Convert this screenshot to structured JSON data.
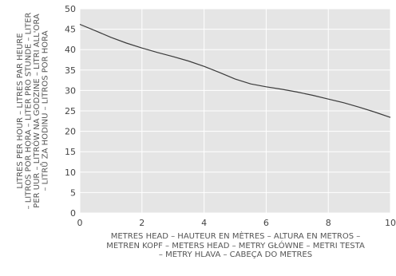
{
  "chart_data": {
    "type": "line",
    "title": "",
    "xlabel_lines": [
      "METRES HEAD – HAUTEUR EN MÈTRES – ALTURA EN METROS –",
      "METREN KOPF – METERS HEAD – METRY GŁÓWNE – METRI TESTA",
      "– METRY HLAVA – CABEÇA DO METRES"
    ],
    "ylabel_lines": [
      "LITRES PER HOUR – LITRES PAR HEURE",
      "– LITROS POR HORA – LITER PRO STUNDE – LITER",
      "PER UUR – LITRÓW NA GODZINE – LITRI ALL'ORA",
      "– LITRŮ ZA HODINU – LITROS POR HORA"
    ],
    "xlim": [
      0,
      10
    ],
    "ylim": [
      0,
      50
    ],
    "xticks": [
      0,
      2,
      4,
      6,
      8,
      10
    ],
    "yticks": [
      0,
      5,
      10,
      15,
      20,
      25,
      30,
      35,
      40,
      45,
      50
    ],
    "grid": true,
    "series": [
      {
        "x": [
          0,
          0.5,
          1,
          1.5,
          2,
          2.5,
          3,
          3.5,
          4,
          4.5,
          5,
          5.5,
          6,
          6.5,
          7,
          7.5,
          8,
          8.5,
          9,
          9.5,
          10
        ],
        "y": [
          46.2,
          44.6,
          43.0,
          41.6,
          40.4,
          39.3,
          38.3,
          37.2,
          35.9,
          34.4,
          32.8,
          31.6,
          30.9,
          30.3,
          29.6,
          28.8,
          27.9,
          27.0,
          25.9,
          24.7,
          23.4
        ]
      }
    ]
  },
  "colors": {
    "plot_bg": "#e5e5e5",
    "grid": "#ffffff",
    "line": "#3a3a3a"
  }
}
